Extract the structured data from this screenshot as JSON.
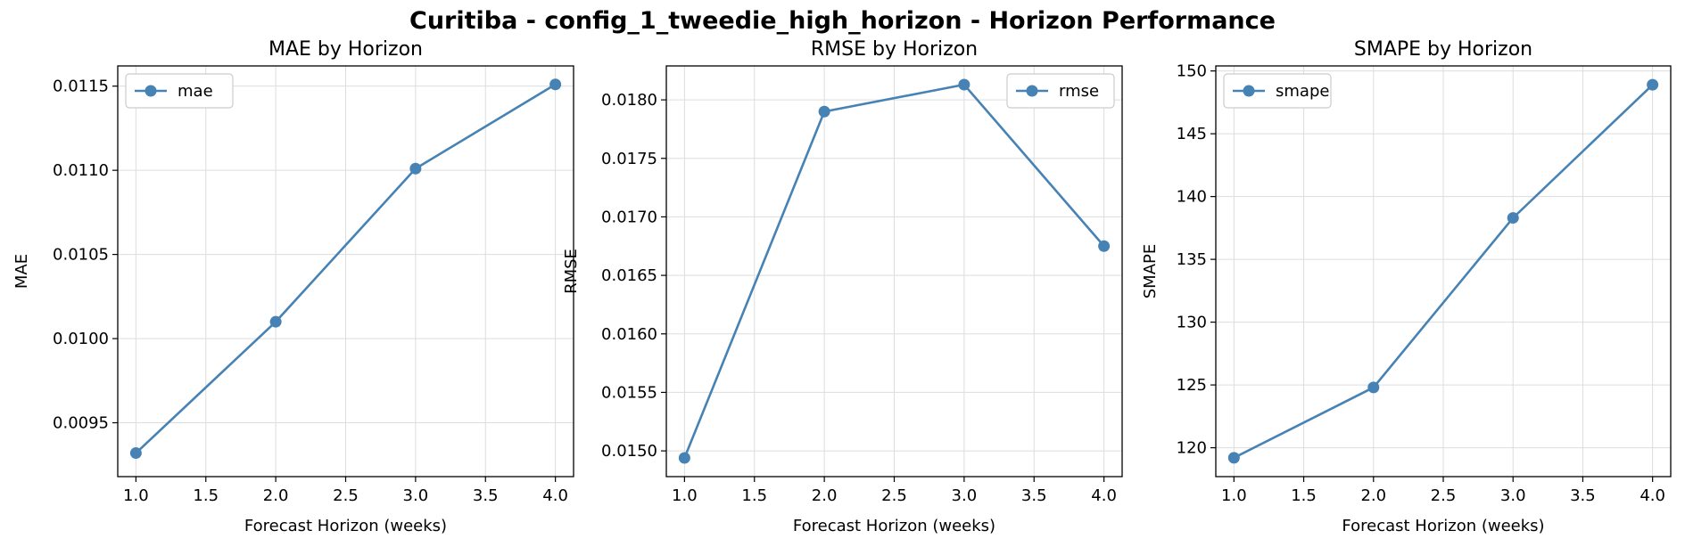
{
  "figure": {
    "title": "Curitiba - config_1_tweedie_high_horizon - Horizon Performance"
  },
  "colors": {
    "line": "#4682b4",
    "grid": "#dddddd",
    "axis": "#000000",
    "legend_border": "#cccccc"
  },
  "chart_data": [
    {
      "type": "line",
      "title": "MAE by Horizon",
      "xlabel": "Forecast Horizon (weeks)",
      "ylabel": "MAE",
      "x": [
        1.0,
        2.0,
        3.0,
        4.0
      ],
      "series": [
        {
          "name": "mae",
          "values": [
            0.00932,
            0.0101,
            0.01101,
            0.01151
          ]
        }
      ],
      "xlim": [
        0.87,
        4.13
      ],
      "ylim": [
        0.00918,
        0.01162
      ],
      "xticks": [
        "1.0",
        "1.5",
        "2.0",
        "2.5",
        "3.0",
        "3.5",
        "4.0"
      ],
      "yticks": [
        "0.0095",
        "0.0100",
        "0.0105",
        "0.0110",
        "0.0115"
      ],
      "grid": true,
      "legend": "upper left"
    },
    {
      "type": "line",
      "title": "RMSE by Horizon",
      "xlabel": "Forecast Horizon (weeks)",
      "ylabel": "RMSE",
      "x": [
        1.0,
        2.0,
        3.0,
        4.0
      ],
      "series": [
        {
          "name": "rmse",
          "values": [
            0.01494,
            0.0179,
            0.01813,
            0.01675
          ]
        }
      ],
      "xlim": [
        0.87,
        4.13
      ],
      "ylim": [
        0.01478,
        0.01829
      ],
      "xticks": [
        "1.0",
        "1.5",
        "2.0",
        "2.5",
        "3.0",
        "3.5",
        "4.0"
      ],
      "yticks": [
        "0.0150",
        "0.0155",
        "0.0160",
        "0.0165",
        "0.0170",
        "0.0175",
        "0.0180"
      ],
      "grid": true,
      "legend": "upper right"
    },
    {
      "type": "line",
      "title": "SMAPE by Horizon",
      "xlabel": "Forecast Horizon (weeks)",
      "ylabel": "SMAPE",
      "x": [
        1.0,
        2.0,
        3.0,
        4.0
      ],
      "series": [
        {
          "name": "smape",
          "values": [
            119.2,
            124.8,
            138.3,
            148.9
          ]
        }
      ],
      "xlim": [
        0.87,
        4.13
      ],
      "ylim": [
        117.7,
        150.4
      ],
      "xticks": [
        "1.0",
        "1.5",
        "2.0",
        "2.5",
        "3.0",
        "3.5",
        "4.0"
      ],
      "yticks": [
        "120",
        "125",
        "130",
        "135",
        "140",
        "145",
        "150"
      ],
      "grid": true,
      "legend": "upper left"
    }
  ]
}
